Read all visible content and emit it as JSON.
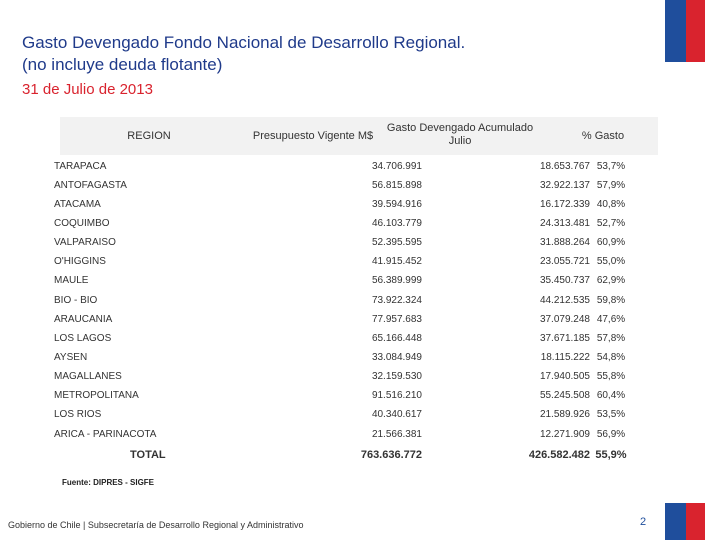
{
  "header": {
    "title": "Gasto Devengado Fondo Nacional de Desarrollo Regional.",
    "subtitle": " (no incluye deuda flotante)",
    "date": "31 de Julio de 2013"
  },
  "table": {
    "columns": [
      "REGION",
      "Presupuesto Vigente M$",
      "Gasto Devengado Acumulado Julio",
      "% Gasto"
    ],
    "rows": [
      {
        "region": "TARAPACA",
        "presupuesto": "34.706.991",
        "gasto": "18.653.767",
        "pct": "53,7%"
      },
      {
        "region": "ANTOFAGASTA",
        "presupuesto": "56.815.898",
        "gasto": "32.922.137",
        "pct": "57,9%"
      },
      {
        "region": "ATACAMA",
        "presupuesto": "39.594.916",
        "gasto": "16.172.339",
        "pct": "40,8%"
      },
      {
        "region": "COQUIMBO",
        "presupuesto": "46.103.779",
        "gasto": "24.313.481",
        "pct": "52,7%"
      },
      {
        "region": "VALPARAISO",
        "presupuesto": "52.395.595",
        "gasto": "31.888.264",
        "pct": "60,9%"
      },
      {
        "region": "O'HIGGINS",
        "presupuesto": "41.915.452",
        "gasto": "23.055.721",
        "pct": "55,0%"
      },
      {
        "region": "MAULE",
        "presupuesto": "56.389.999",
        "gasto": "35.450.737",
        "pct": "62,9%"
      },
      {
        "region": "BIO - BIO",
        "presupuesto": "73.922.324",
        "gasto": "44.212.535",
        "pct": "59,8%"
      },
      {
        "region": "ARAUCANIA",
        "presupuesto": "77.957.683",
        "gasto": "37.079.248",
        "pct": "47,6%"
      },
      {
        "region": "LOS LAGOS",
        "presupuesto": "65.166.448",
        "gasto": "37.671.185",
        "pct": "57,8%"
      },
      {
        "region": "AYSEN",
        "presupuesto": "33.084.949",
        "gasto": "18.115.222",
        "pct": "54,8%"
      },
      {
        "region": "MAGALLANES",
        "presupuesto": "32.159.530",
        "gasto": "17.940.505",
        "pct": "55,8%"
      },
      {
        "region": "METROPOLITANA",
        "presupuesto": "91.516.210",
        "gasto": "55.245.508",
        "pct": "60,4%"
      },
      {
        "region": "LOS RIOS",
        "presupuesto": "40.340.617",
        "gasto": "21.589.926",
        "pct": "53,5%"
      },
      {
        "region": "ARICA - PARINACOTA",
        "presupuesto": "21.566.381",
        "gasto": "12.271.909",
        "pct": "56,9%"
      }
    ],
    "total": {
      "region": "TOTAL",
      "presupuesto": "763.636.772",
      "gasto": "426.582.482",
      "pct": "55,9%"
    }
  },
  "source": "Fuente: DIPRES - SIGFE",
  "footer": "Gobierno de Chile | Subsecretaría de Desarrollo Regional y Administrativo",
  "page_number": "2",
  "colors": {
    "flag_blue": "#1f4e9c",
    "flag_red": "#d9232e",
    "title_blue": "#1f3a8a"
  }
}
